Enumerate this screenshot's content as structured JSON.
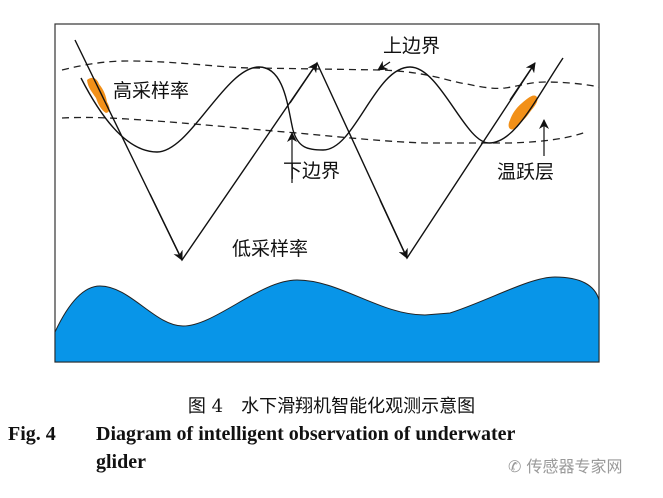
{
  "diagram": {
    "labels": {
      "upper_boundary": "上边界",
      "lower_boundary": "下边界",
      "high_sampling": "高采样率",
      "low_sampling": "低采样率",
      "thermocline": "温跃层"
    },
    "colors": {
      "seabed": "#0895e8",
      "high_sampling_segment": "#f29018",
      "lines": "#111111"
    }
  },
  "caption": {
    "cn": "图 4　水下滑翔机智能化观测示意图",
    "en_tag": "Fig. 4",
    "en_line1": "Diagram of intelligent observation of underwater",
    "en_line2": "glider"
  },
  "watermark": {
    "icon": "wechat-icon",
    "text": "传感器专家网"
  }
}
